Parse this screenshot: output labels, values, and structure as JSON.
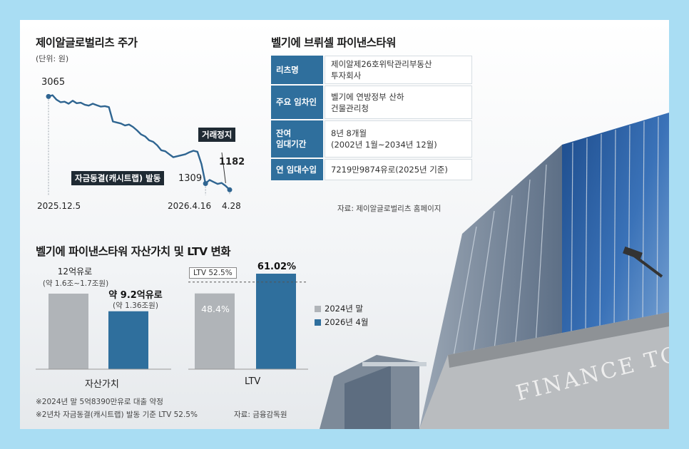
{
  "colors": {
    "background": "#a9ddf3",
    "accent_blue": "#2f6f9d",
    "line_blue": "#2f6591",
    "grey_bar": "#b0b4b8",
    "tag_dark": "#1f2a33"
  },
  "stock": {
    "title": "제이알글로벌리츠 주가",
    "unit": "(단위: 원)",
    "start_value_label": "3065",
    "low_value_label": "1309",
    "last_value_label": "1182",
    "event_suspend": "거래정지",
    "event_cashtrap": "자금동결(캐시트랩) 발동",
    "x_labels": [
      "2025.12.5",
      "2026.4.16",
      "4.28"
    ]
  },
  "info_table": {
    "title": "벨기에 브뤼셀 파이낸스타워",
    "rows": [
      {
        "label": "리츠명",
        "value": "제이알제26호위탁관리부동산\n투자회사"
      },
      {
        "label": "주요 임차인",
        "value": "벨기에 연방정부 산하\n건물관리청"
      },
      {
        "label": "잔여\n임대기간",
        "value": "8년 8개월\n(2002년 1월~2034년 12월)"
      },
      {
        "label": "연 임대수입",
        "value": "7219만9874유로(2025년 기준)"
      }
    ],
    "source": "자료: 제이알글로벌리츠 홈페이지"
  },
  "asset": {
    "title": "벨기에 파이낸스타워 자산가치 및 LTV 변화",
    "bar1_value": "12억유로",
    "bar1_sub": "(약 1.6조~1.7조원)",
    "bar2_value": "약 9.2억유로",
    "bar2_sub": "(약 1.36조원)",
    "group1_label": "자산가치",
    "ltv1_value": "48.4%",
    "ltv2_value": "61.02%",
    "ltv_threshold_label": "LTV 52.5%",
    "group2_label": "LTV",
    "legend": [
      "2024년 말",
      "2026년 4월"
    ],
    "notes": [
      "※2024년 말 5억8390만유로 대출 약정",
      "※2년차 자금동결(캐시트랩) 발동 기준 LTV 52.5%"
    ],
    "source": "자료: 금융감독원"
  },
  "photo": {
    "sign_text": "FINANCE TOW"
  },
  "chart_data": [
    {
      "type": "line",
      "title": "제이알글로벌리츠 주가",
      "ylabel": "(단위: 원)",
      "x": [
        "2025.12.5",
        "",
        "",
        "",
        "",
        "",
        "",
        "",
        "",
        "",
        "",
        "",
        "",
        "",
        "",
        "",
        "",
        "",
        "",
        "",
        "",
        "",
        "",
        "",
        "",
        "",
        "",
        "",
        "",
        "",
        "",
        "",
        "",
        "",
        "",
        "",
        "",
        "",
        "",
        "2026.4.16",
        "",
        "",
        "",
        "",
        "",
        "4.28"
      ],
      "series": [
        {
          "values": [
            3065,
            3090,
            3000,
            2950,
            2960,
            2920,
            2980,
            2930,
            2940,
            2900,
            2880,
            2920,
            2890,
            2860,
            2870,
            2850,
            2560,
            2540,
            2520,
            2480,
            2500,
            2450,
            2380,
            2300,
            2260,
            2180,
            2150,
            2080,
            1980,
            1960,
            1900,
            1840,
            1860,
            1880,
            1900,
            1940,
            1970,
            1950,
            1700,
            1309,
            1380,
            1340,
            1300,
            1320,
            1260,
            1182
          ]
        }
      ],
      "annotations": [
        "거래정지",
        "자금동결(캐시트랩) 발동"
      ],
      "ylim": [
        1100,
        3200
      ]
    },
    {
      "type": "bar",
      "title": "벨기에 파이낸스타워 자산가치 및 LTV 변화",
      "categories": [
        "자산가치",
        "LTV"
      ],
      "series": [
        {
          "name": "2024년 말",
          "values": [
            "12억유로",
            "48.4%"
          ]
        },
        {
          "name": "2026년 4월",
          "values": [
            "약 9.2억유로",
            "61.02%"
          ]
        }
      ],
      "numeric": {
        "asset_value_eur_100m": [
          12,
          9.2
        ],
        "ltv_percent": [
          48.4,
          61.02
        ]
      },
      "threshold": {
        "label": "LTV 52.5%",
        "value": 52.5
      }
    }
  ]
}
